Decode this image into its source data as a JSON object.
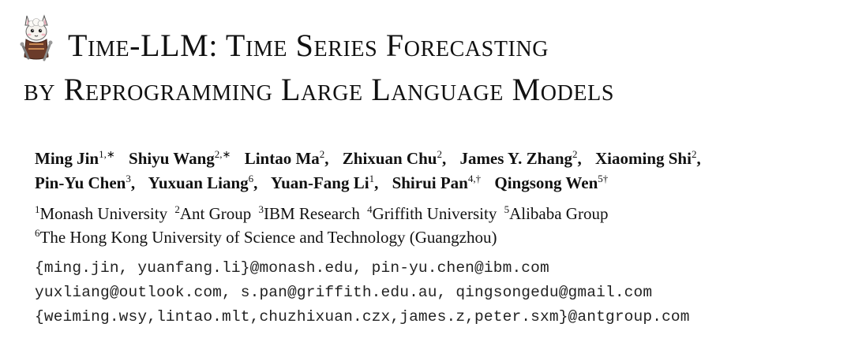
{
  "title": {
    "line1": [
      {
        "big": "T",
        "small": "ime"
      },
      {
        "big": "-LLM: T",
        "small": "ime"
      },
      {
        "big": " S",
        "small": "eries"
      },
      {
        "big": " F",
        "small": "orecasting"
      }
    ],
    "line2": [
      {
        "big": "",
        "small": "by"
      },
      {
        "big": " R",
        "small": "eprogramming"
      },
      {
        "big": " L",
        "small": "arge"
      },
      {
        "big": " L",
        "small": "anguage"
      },
      {
        "big": " M",
        "small": "odels"
      }
    ]
  },
  "authors": {
    "row1": [
      {
        "name": "Ming Jin",
        "sup": "1,∗"
      },
      {
        "name": "Shiyu Wang",
        "sup": "2,∗"
      },
      {
        "name": "Lintao Ma",
        "sup": "2"
      },
      {
        "name": "Zhixuan Chu",
        "sup": "2"
      },
      {
        "name": "James Y. Zhang",
        "sup": "2"
      },
      {
        "name": "Xiaoming Shi",
        "sup": "2"
      }
    ],
    "row2": [
      {
        "name": "Pin-Yu Chen",
        "sup": "3"
      },
      {
        "name": "Yuxuan Liang",
        "sup": "6"
      },
      {
        "name": "Yuan-Fang Li",
        "sup": "1"
      },
      {
        "name": "Shirui Pan",
        "sup": "4,†"
      },
      {
        "name": "Qingsong Wen",
        "sup": "5†"
      }
    ]
  },
  "affiliations": {
    "row1": [
      {
        "sup": "1",
        "name": "Monash University"
      },
      {
        "sup": "2",
        "name": "Ant Group"
      },
      {
        "sup": "3",
        "name": "IBM Research"
      },
      {
        "sup": "4",
        "name": "Griffith University"
      },
      {
        "sup": "5",
        "name": "Alibaba Group"
      }
    ],
    "row2": [
      {
        "sup": "6",
        "name": "The Hong Kong University of Science and Technology (Guangzhou)"
      }
    ]
  },
  "emails": [
    "{ming.jin, yuanfang.li}@monash.edu, pin-yu.chen@ibm.com",
    "yuxliang@outlook.com, s.pan@griffith.edu.au, qingsongedu@gmail.com",
    "{weiming.wsy,lintao.mlt,chuzhixuan.czx,james.z,peter.sxm}@antgroup.com"
  ],
  "logo": {
    "icon": "llama-mascot-icon"
  }
}
